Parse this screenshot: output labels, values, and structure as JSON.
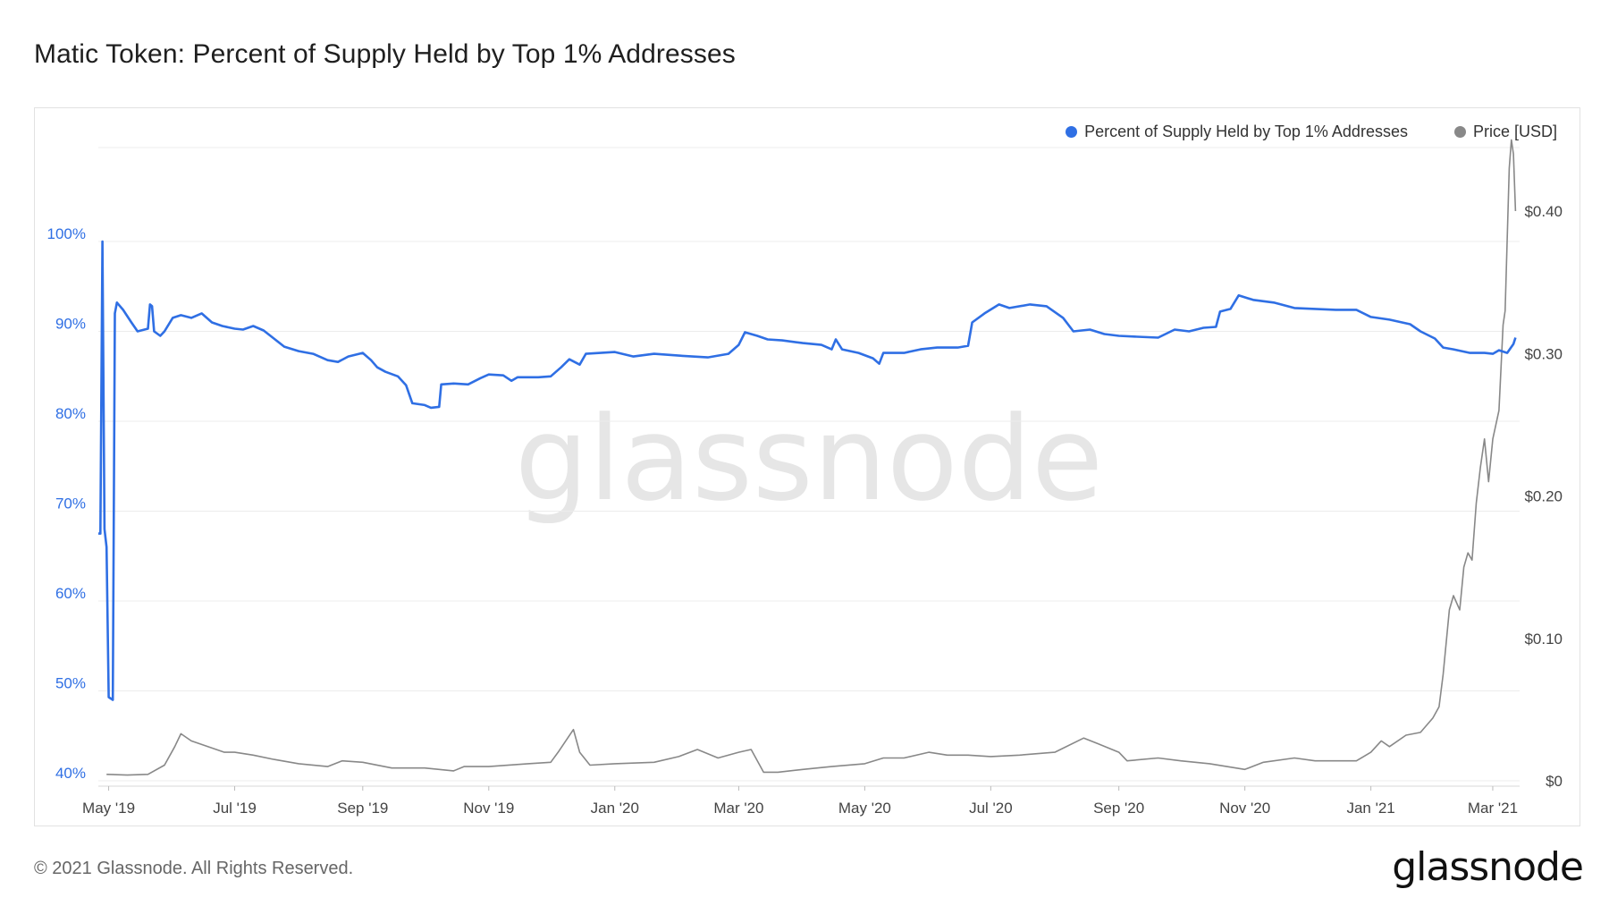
{
  "title": "Matic Token: Percent of Supply Held by Top 1% Addresses",
  "watermark": "glassnode",
  "footer": {
    "copyright": "© 2021 Glassnode. All Rights Reserved.",
    "logo": "glassnode"
  },
  "colors": {
    "percent_series": "#2f6fe4",
    "price_series": "#888888",
    "left_axis_text": "#2f6fe4",
    "grid": "#ececec",
    "watermark": "#e6e6e6"
  },
  "chart_data": {
    "type": "line",
    "x_axis": {
      "tick_labels": [
        "May '19",
        "Jul '19",
        "Sep '19",
        "Nov '19",
        "Jan '20",
        "Mar '20",
        "May '20",
        "Jul '20",
        "Sep '20",
        "Nov '20",
        "Jan '21",
        "Mar '21"
      ],
      "tick_dates": [
        "2019-05-01",
        "2019-07-01",
        "2019-09-01",
        "2019-11-01",
        "2020-01-01",
        "2020-03-01",
        "2020-05-01",
        "2020-07-01",
        "2020-09-01",
        "2020-11-01",
        "2021-01-01",
        "2021-03-01"
      ],
      "range": [
        "2019-04-26",
        "2021-03-14"
      ]
    },
    "y_left": {
      "tick_labels": [
        "40%",
        "50%",
        "60%",
        "70%",
        "80%",
        "90%",
        "100%"
      ],
      "tick_values": [
        40,
        50,
        60,
        70,
        80,
        90,
        100
      ],
      "range": [
        40,
        100
      ]
    },
    "y_right": {
      "tick_labels": [
        "$0",
        "$0.10",
        "$0.20",
        "$0.30",
        "$0.40"
      ],
      "tick_values": [
        0,
        0.1,
        0.2,
        0.3,
        0.4
      ],
      "range": [
        0,
        0.4
      ]
    },
    "legend_position": "top-right",
    "grid": true,
    "series": [
      {
        "name": "Percent of Supply Held by Top 1% Addresses",
        "axis": "left",
        "points": [
          [
            "2019-04-26",
            67.5
          ],
          [
            "2019-04-27",
            67.5
          ],
          [
            "2019-04-28",
            100
          ],
          [
            "2019-04-29",
            68
          ],
          [
            "2019-04-30",
            66
          ],
          [
            "2019-05-01",
            49.3
          ],
          [
            "2019-05-03",
            49
          ],
          [
            "2019-05-04",
            92
          ],
          [
            "2019-05-05",
            93.2
          ],
          [
            "2019-05-08",
            92.4
          ],
          [
            "2019-05-12",
            91
          ],
          [
            "2019-05-15",
            90
          ],
          [
            "2019-05-20",
            90.3
          ],
          [
            "2019-05-21",
            93
          ],
          [
            "2019-05-22",
            92.8
          ],
          [
            "2019-05-23",
            90
          ],
          [
            "2019-05-26",
            89.5
          ],
          [
            "2019-05-28",
            90
          ],
          [
            "2019-06-01",
            91.5
          ],
          [
            "2019-06-05",
            91.8
          ],
          [
            "2019-06-10",
            91.5
          ],
          [
            "2019-06-15",
            92
          ],
          [
            "2019-06-20",
            91
          ],
          [
            "2019-06-25",
            90.6
          ],
          [
            "2019-07-01",
            90.3
          ],
          [
            "2019-07-05",
            90.2
          ],
          [
            "2019-07-10",
            90.6
          ],
          [
            "2019-07-15",
            90.1
          ],
          [
            "2019-07-20",
            89.2
          ],
          [
            "2019-07-25",
            88.3
          ],
          [
            "2019-08-01",
            87.8
          ],
          [
            "2019-08-08",
            87.5
          ],
          [
            "2019-08-15",
            86.8
          ],
          [
            "2019-08-20",
            86.6
          ],
          [
            "2019-08-25",
            87.2
          ],
          [
            "2019-09-01",
            87.6
          ],
          [
            "2019-09-05",
            86.8
          ],
          [
            "2019-09-08",
            86
          ],
          [
            "2019-09-12",
            85.5
          ],
          [
            "2019-09-18",
            85
          ],
          [
            "2019-09-22",
            84
          ],
          [
            "2019-09-25",
            82
          ],
          [
            "2019-10-01",
            81.8
          ],
          [
            "2019-10-04",
            81.5
          ],
          [
            "2019-10-08",
            81.6
          ],
          [
            "2019-10-09",
            84.1
          ],
          [
            "2019-10-15",
            84.2
          ],
          [
            "2019-10-22",
            84.1
          ],
          [
            "2019-10-28",
            84.8
          ],
          [
            "2019-11-01",
            85.2
          ],
          [
            "2019-11-08",
            85.1
          ],
          [
            "2019-11-12",
            84.5
          ],
          [
            "2019-11-15",
            84.9
          ],
          [
            "2019-11-25",
            84.9
          ],
          [
            "2019-12-01",
            85
          ],
          [
            "2019-12-06",
            86
          ],
          [
            "2019-12-10",
            86.9
          ],
          [
            "2019-12-15",
            86.3
          ],
          [
            "2019-12-18",
            87.5
          ],
          [
            "2019-12-25",
            87.6
          ],
          [
            "2020-01-01",
            87.7
          ],
          [
            "2020-01-10",
            87.2
          ],
          [
            "2020-01-20",
            87.5
          ],
          [
            "2020-02-01",
            87.3
          ],
          [
            "2020-02-15",
            87.1
          ],
          [
            "2020-02-25",
            87.5
          ],
          [
            "2020-03-01",
            88.5
          ],
          [
            "2020-03-04",
            89.9
          ],
          [
            "2020-03-10",
            89.5
          ],
          [
            "2020-03-15",
            89.1
          ],
          [
            "2020-03-22",
            89
          ],
          [
            "2020-04-01",
            88.7
          ],
          [
            "2020-04-10",
            88.5
          ],
          [
            "2020-04-15",
            88
          ],
          [
            "2020-04-17",
            89.1
          ],
          [
            "2020-04-20",
            88
          ],
          [
            "2020-04-28",
            87.6
          ],
          [
            "2020-05-05",
            87
          ],
          [
            "2020-05-08",
            86.4
          ],
          [
            "2020-05-10",
            87.6
          ],
          [
            "2020-05-20",
            87.6
          ],
          [
            "2020-05-28",
            88
          ],
          [
            "2020-06-05",
            88.2
          ],
          [
            "2020-06-15",
            88.2
          ],
          [
            "2020-06-20",
            88.4
          ],
          [
            "2020-06-22",
            91
          ],
          [
            "2020-06-28",
            92
          ],
          [
            "2020-07-05",
            93
          ],
          [
            "2020-07-10",
            92.6
          ],
          [
            "2020-07-20",
            93
          ],
          [
            "2020-07-28",
            92.8
          ],
          [
            "2020-08-05",
            91.5
          ],
          [
            "2020-08-10",
            90
          ],
          [
            "2020-08-18",
            90.2
          ],
          [
            "2020-08-25",
            89.7
          ],
          [
            "2020-09-01",
            89.5
          ],
          [
            "2020-09-10",
            89.4
          ],
          [
            "2020-09-20",
            89.3
          ],
          [
            "2020-09-28",
            90.2
          ],
          [
            "2020-10-05",
            90
          ],
          [
            "2020-10-12",
            90.4
          ],
          [
            "2020-10-18",
            90.5
          ],
          [
            "2020-10-20",
            92.2
          ],
          [
            "2020-10-25",
            92.5
          ],
          [
            "2020-10-29",
            94
          ],
          [
            "2020-11-05",
            93.5
          ],
          [
            "2020-11-15",
            93.2
          ],
          [
            "2020-11-25",
            92.6
          ],
          [
            "2020-12-05",
            92.5
          ],
          [
            "2020-12-15",
            92.4
          ],
          [
            "2020-12-25",
            92.4
          ],
          [
            "2021-01-01",
            91.6
          ],
          [
            "2021-01-10",
            91.3
          ],
          [
            "2021-01-20",
            90.8
          ],
          [
            "2021-01-25",
            90
          ],
          [
            "2021-02-01",
            89.2
          ],
          [
            "2021-02-05",
            88.2
          ],
          [
            "2021-02-10",
            88
          ],
          [
            "2021-02-18",
            87.6
          ],
          [
            "2021-02-25",
            87.6
          ],
          [
            "2021-03-01",
            87.5
          ],
          [
            "2021-03-04",
            87.9
          ],
          [
            "2021-03-08",
            87.6
          ],
          [
            "2021-03-11",
            88.6
          ],
          [
            "2021-03-12",
            89.3
          ]
        ]
      },
      {
        "name": "Price [USD]",
        "axis": "right",
        "points": [
          [
            "2019-04-30",
            0.0045
          ],
          [
            "2019-05-10",
            0.004
          ],
          [
            "2019-05-20",
            0.0045
          ],
          [
            "2019-05-28",
            0.011
          ],
          [
            "2019-06-02",
            0.024
          ],
          [
            "2019-06-05",
            0.033
          ],
          [
            "2019-06-10",
            0.028
          ],
          [
            "2019-06-18",
            0.024
          ],
          [
            "2019-06-26",
            0.02
          ],
          [
            "2019-07-01",
            0.02
          ],
          [
            "2019-07-10",
            0.018
          ],
          [
            "2019-07-20",
            0.015
          ],
          [
            "2019-08-01",
            0.012
          ],
          [
            "2019-08-15",
            0.01
          ],
          [
            "2019-08-22",
            0.014
          ],
          [
            "2019-09-01",
            0.013
          ],
          [
            "2019-09-15",
            0.009
          ],
          [
            "2019-10-01",
            0.009
          ],
          [
            "2019-10-15",
            0.007
          ],
          [
            "2019-10-20",
            0.01
          ],
          [
            "2019-11-01",
            0.01
          ],
          [
            "2019-11-20",
            0.012
          ],
          [
            "2019-12-01",
            0.013
          ],
          [
            "2019-12-05",
            0.021
          ],
          [
            "2019-12-12",
            0.036
          ],
          [
            "2019-12-15",
            0.02
          ],
          [
            "2019-12-20",
            0.011
          ],
          [
            "2020-01-01",
            0.012
          ],
          [
            "2020-01-20",
            0.013
          ],
          [
            "2020-02-01",
            0.017
          ],
          [
            "2020-02-10",
            0.022
          ],
          [
            "2020-02-20",
            0.016
          ],
          [
            "2020-03-01",
            0.02
          ],
          [
            "2020-03-07",
            0.022
          ],
          [
            "2020-03-13",
            0.006
          ],
          [
            "2020-03-20",
            0.006
          ],
          [
            "2020-04-01",
            0.008
          ],
          [
            "2020-04-15",
            0.01
          ],
          [
            "2020-05-01",
            0.012
          ],
          [
            "2020-05-10",
            0.016
          ],
          [
            "2020-05-20",
            0.016
          ],
          [
            "2020-06-01",
            0.02
          ],
          [
            "2020-06-10",
            0.018
          ],
          [
            "2020-06-20",
            0.018
          ],
          [
            "2020-07-01",
            0.017
          ],
          [
            "2020-07-15",
            0.018
          ],
          [
            "2020-08-01",
            0.02
          ],
          [
            "2020-08-15",
            0.03
          ],
          [
            "2020-08-22",
            0.026
          ],
          [
            "2020-09-01",
            0.02
          ],
          [
            "2020-09-05",
            0.014
          ],
          [
            "2020-09-20",
            0.016
          ],
          [
            "2020-10-01",
            0.014
          ],
          [
            "2020-10-15",
            0.012
          ],
          [
            "2020-11-01",
            0.008
          ],
          [
            "2020-11-10",
            0.013
          ],
          [
            "2020-11-25",
            0.016
          ],
          [
            "2020-12-05",
            0.014
          ],
          [
            "2020-12-15",
            0.014
          ],
          [
            "2020-12-25",
            0.014
          ],
          [
            "2021-01-01",
            0.02
          ],
          [
            "2021-01-06",
            0.028
          ],
          [
            "2021-01-10",
            0.024
          ],
          [
            "2021-01-18",
            0.032
          ],
          [
            "2021-01-25",
            0.034
          ],
          [
            "2021-01-31",
            0.044
          ],
          [
            "2021-02-03",
            0.052
          ],
          [
            "2021-02-05",
            0.075
          ],
          [
            "2021-02-08",
            0.12
          ],
          [
            "2021-02-10",
            0.13
          ],
          [
            "2021-02-13",
            0.12
          ],
          [
            "2021-02-15",
            0.15
          ],
          [
            "2021-02-17",
            0.16
          ],
          [
            "2021-02-19",
            0.155
          ],
          [
            "2021-02-21",
            0.195
          ],
          [
            "2021-02-23",
            0.22
          ],
          [
            "2021-02-25",
            0.24
          ],
          [
            "2021-02-27",
            0.21
          ],
          [
            "2021-03-01",
            0.24
          ],
          [
            "2021-03-04",
            0.26
          ],
          [
            "2021-03-06",
            0.32
          ],
          [
            "2021-03-07",
            0.33
          ],
          [
            "2021-03-09",
            0.43
          ],
          [
            "2021-03-10",
            0.45
          ],
          [
            "2021-03-11",
            0.44
          ],
          [
            "2021-03-12",
            0.4
          ]
        ]
      }
    ]
  }
}
